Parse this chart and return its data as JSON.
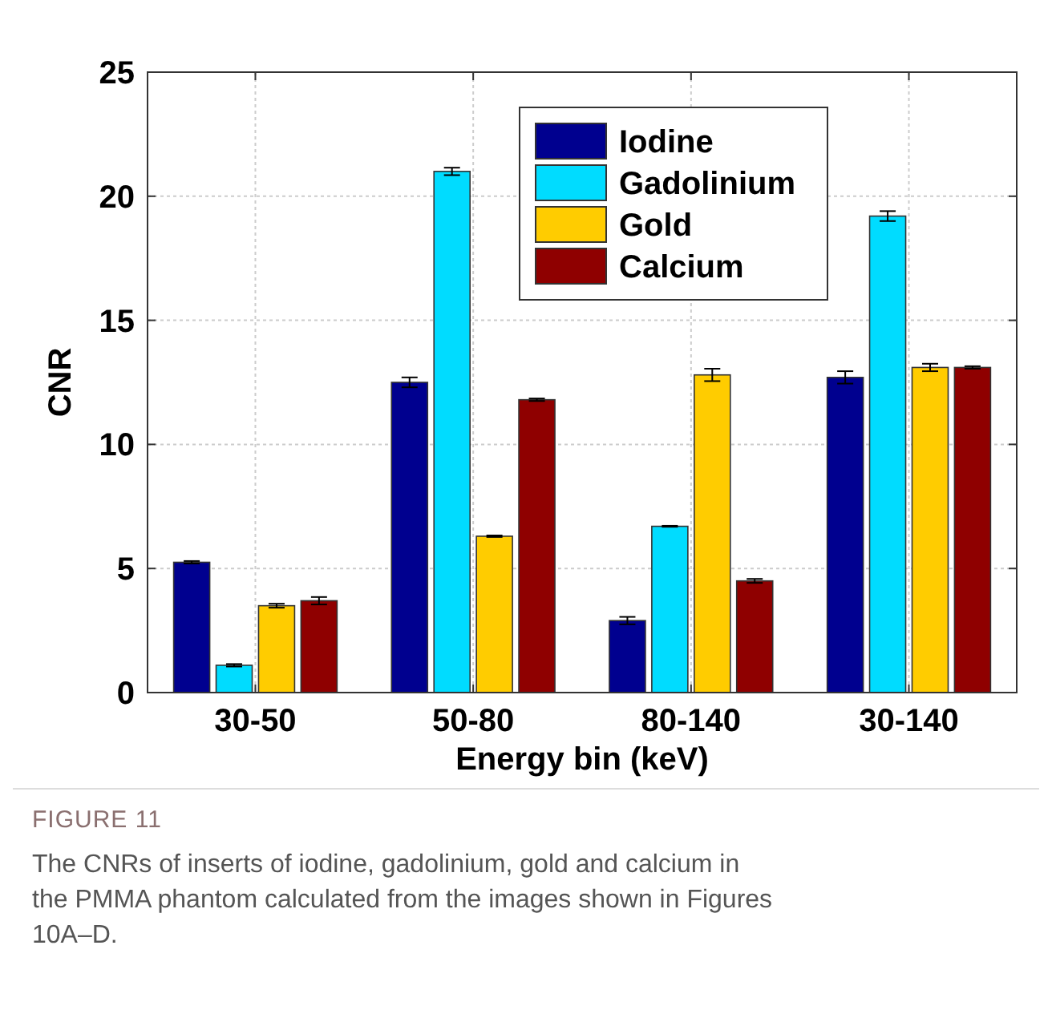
{
  "chart_data": {
    "type": "bar",
    "xlabel": "Energy bin (keV)",
    "ylabel": "CNR",
    "categories": [
      "30-50",
      "50-80",
      "80-140",
      "30-140"
    ],
    "series": [
      {
        "name": "Iodine",
        "color": "#00008f",
        "values": [
          5.25,
          12.5,
          2.9,
          12.7
        ],
        "errors": [
          0.05,
          0.2,
          0.15,
          0.25
        ]
      },
      {
        "name": "Gadolinium",
        "color": "#00dcff",
        "values": [
          1.1,
          21.0,
          6.7,
          19.2
        ],
        "errors": [
          0.05,
          0.15,
          0.02,
          0.2
        ]
      },
      {
        "name": "Gold",
        "color": "#ffcc00",
        "values": [
          3.5,
          6.3,
          12.8,
          13.1
        ],
        "errors": [
          0.08,
          0.03,
          0.25,
          0.15
        ]
      },
      {
        "name": "Calcium",
        "color": "#8f0000",
        "values": [
          3.7,
          11.8,
          4.5,
          13.1
        ],
        "errors": [
          0.15,
          0.05,
          0.08,
          0.05
        ]
      }
    ],
    "ylim": [
      0,
      25
    ],
    "yticks": [
      0,
      5,
      10,
      15,
      20,
      25
    ],
    "grid": true,
    "legend": "top right",
    "annotations": [
      "FIGURE 11",
      "The CNRs of inserts of iodine, gadolinium, gold and calcium in the PMMA phantom calculated from the images shown in Figures 10A–D."
    ]
  }
}
